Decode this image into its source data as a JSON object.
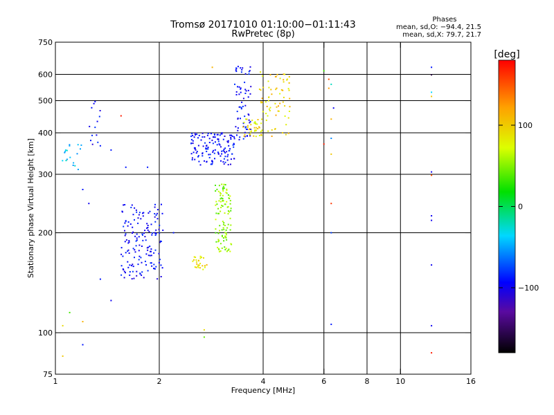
{
  "chart_data": {
    "type": "scatter",
    "title": "Tromsø 20171010 01:10:00−01:11:43",
    "subtitle": "RwPretec (8p)",
    "xlabel": "Frequency [MHz]",
    "ylabel": "Stationary phase Virtual Height [km]",
    "x_scale": "log",
    "y_scale": "log",
    "xlim": [
      1,
      16
    ],
    "ylim": [
      75,
      750
    ],
    "x_ticks": [
      1,
      2,
      4,
      6,
      8,
      10,
      16
    ],
    "x_tick_labels": [
      "1",
      "2",
      "4",
      "6",
      "8",
      "10",
      "16"
    ],
    "y_ticks": [
      75,
      100,
      200,
      300,
      400,
      500,
      600,
      750
    ],
    "y_tick_labels": [
      "75",
      "100",
      "200",
      "300",
      "400",
      "500",
      "600",
      "750"
    ],
    "grid_x": [
      2,
      4,
      6,
      8,
      10
    ],
    "grid_y": [
      100,
      200,
      300,
      400,
      500,
      600
    ],
    "grid": true,
    "phases_box": {
      "title": "Phases",
      "line1": "mean, sd,O: −94.4, 21.5",
      "line2": "mean, sd,X:  79.7, 21.7"
    },
    "colorbar": {
      "label": "[deg]",
      "range": [
        -180,
        180
      ],
      "ticks": [
        100,
        0,
        -100
      ],
      "tick_labels": [
        "100",
        "0",
        "−100"
      ]
    },
    "clusters": [
      {
        "f": [
          1.55,
          2.05
        ],
        "h": [
          145,
          245
        ],
        "phase": [
          -110,
          -80
        ],
        "n": 160
      },
      {
        "f": [
          2.45,
          3.3
        ],
        "h": [
          320,
          400
        ],
        "phase": [
          -110,
          -80
        ],
        "n": 140
      },
      {
        "f": [
          3.3,
          3.7
        ],
        "h": [
          380,
          640
        ],
        "phase": [
          -110,
          -80
        ],
        "n": 70
      },
      {
        "f": [
          3.5,
          4.0
        ],
        "h": [
          390,
          440
        ],
        "phase": [
          60,
          110
        ],
        "n": 40
      },
      {
        "f": [
          3.9,
          4.8
        ],
        "h": [
          390,
          610
        ],
        "phase": [
          70,
          120
        ],
        "n": 70
      },
      {
        "f": [
          2.9,
          3.25
        ],
        "h": [
          175,
          280
        ],
        "phase": [
          20,
          70
        ],
        "n": 110
      },
      {
        "f": [
          2.5,
          2.75
        ],
        "h": [
          155,
          170
        ],
        "phase": [
          70,
          110
        ],
        "n": 25
      },
      {
        "f": [
          1.25,
          1.35
        ],
        "h": [
          360,
          500
        ],
        "phase": [
          -110,
          -80
        ],
        "n": 14
      },
      {
        "f": [
          1.02,
          1.2
        ],
        "h": [
          310,
          370
        ],
        "phase": [
          -60,
          -30
        ],
        "n": 18
      }
    ],
    "points": [
      {
        "f": 1.05,
        "h": 85,
        "phase": 100
      },
      {
        "f": 1.05,
        "h": 105,
        "phase": 90
      },
      {
        "f": 1.1,
        "h": 115,
        "phase": 20
      },
      {
        "f": 1.2,
        "h": 92,
        "phase": -90
      },
      {
        "f": 1.2,
        "h": 108,
        "phase": 110
      },
      {
        "f": 1.2,
        "h": 270,
        "phase": -90
      },
      {
        "f": 1.25,
        "h": 245,
        "phase": -100
      },
      {
        "f": 1.35,
        "h": 145,
        "phase": -90
      },
      {
        "f": 1.45,
        "h": 125,
        "phase": -100
      },
      {
        "f": 1.45,
        "h": 355,
        "phase": -90
      },
      {
        "f": 1.55,
        "h": 450,
        "phase": 170
      },
      {
        "f": 1.6,
        "h": 315,
        "phase": -90
      },
      {
        "f": 1.85,
        "h": 315,
        "phase": -90
      },
      {
        "f": 2.2,
        "h": 200,
        "phase": -90
      },
      {
        "f": 2.7,
        "h": 102,
        "phase": 90
      },
      {
        "f": 2.7,
        "h": 97,
        "phase": 30
      },
      {
        "f": 2.6,
        "h": 165,
        "phase": 100
      },
      {
        "f": 2.85,
        "h": 630,
        "phase": 110
      },
      {
        "f": 6.0,
        "h": 615,
        "phase": 20
      },
      {
        "f": 6.0,
        "h": 370,
        "phase": 170
      },
      {
        "f": 6.2,
        "h": 580,
        "phase": 150
      },
      {
        "f": 6.2,
        "h": 545,
        "phase": 120
      },
      {
        "f": 6.3,
        "h": 560,
        "phase": -30
      },
      {
        "f": 6.3,
        "h": 440,
        "phase": 110
      },
      {
        "f": 6.3,
        "h": 385,
        "phase": -60
      },
      {
        "f": 6.3,
        "h": 345,
        "phase": 100
      },
      {
        "f": 6.3,
        "h": 245,
        "phase": 160
      },
      {
        "f": 6.3,
        "h": 200,
        "phase": -80
      },
      {
        "f": 6.3,
        "h": 106,
        "phase": -90
      },
      {
        "f": 6.4,
        "h": 475,
        "phase": -100
      },
      {
        "f": 12.3,
        "h": 630,
        "phase": -90
      },
      {
        "f": 12.3,
        "h": 598,
        "phase": -160
      },
      {
        "f": 12.3,
        "h": 530,
        "phase": -40
      },
      {
        "f": 12.3,
        "h": 515,
        "phase": 100
      },
      {
        "f": 12.3,
        "h": 305,
        "phase": -100
      },
      {
        "f": 12.3,
        "h": 298,
        "phase": 150
      },
      {
        "f": 12.3,
        "h": 225,
        "phase": -100
      },
      {
        "f": 12.3,
        "h": 218,
        "phase": -100
      },
      {
        "f": 12.3,
        "h": 160,
        "phase": -100
      },
      {
        "f": 12.3,
        "h": 105,
        "phase": -100
      },
      {
        "f": 12.3,
        "h": 87,
        "phase": 170
      }
    ]
  }
}
